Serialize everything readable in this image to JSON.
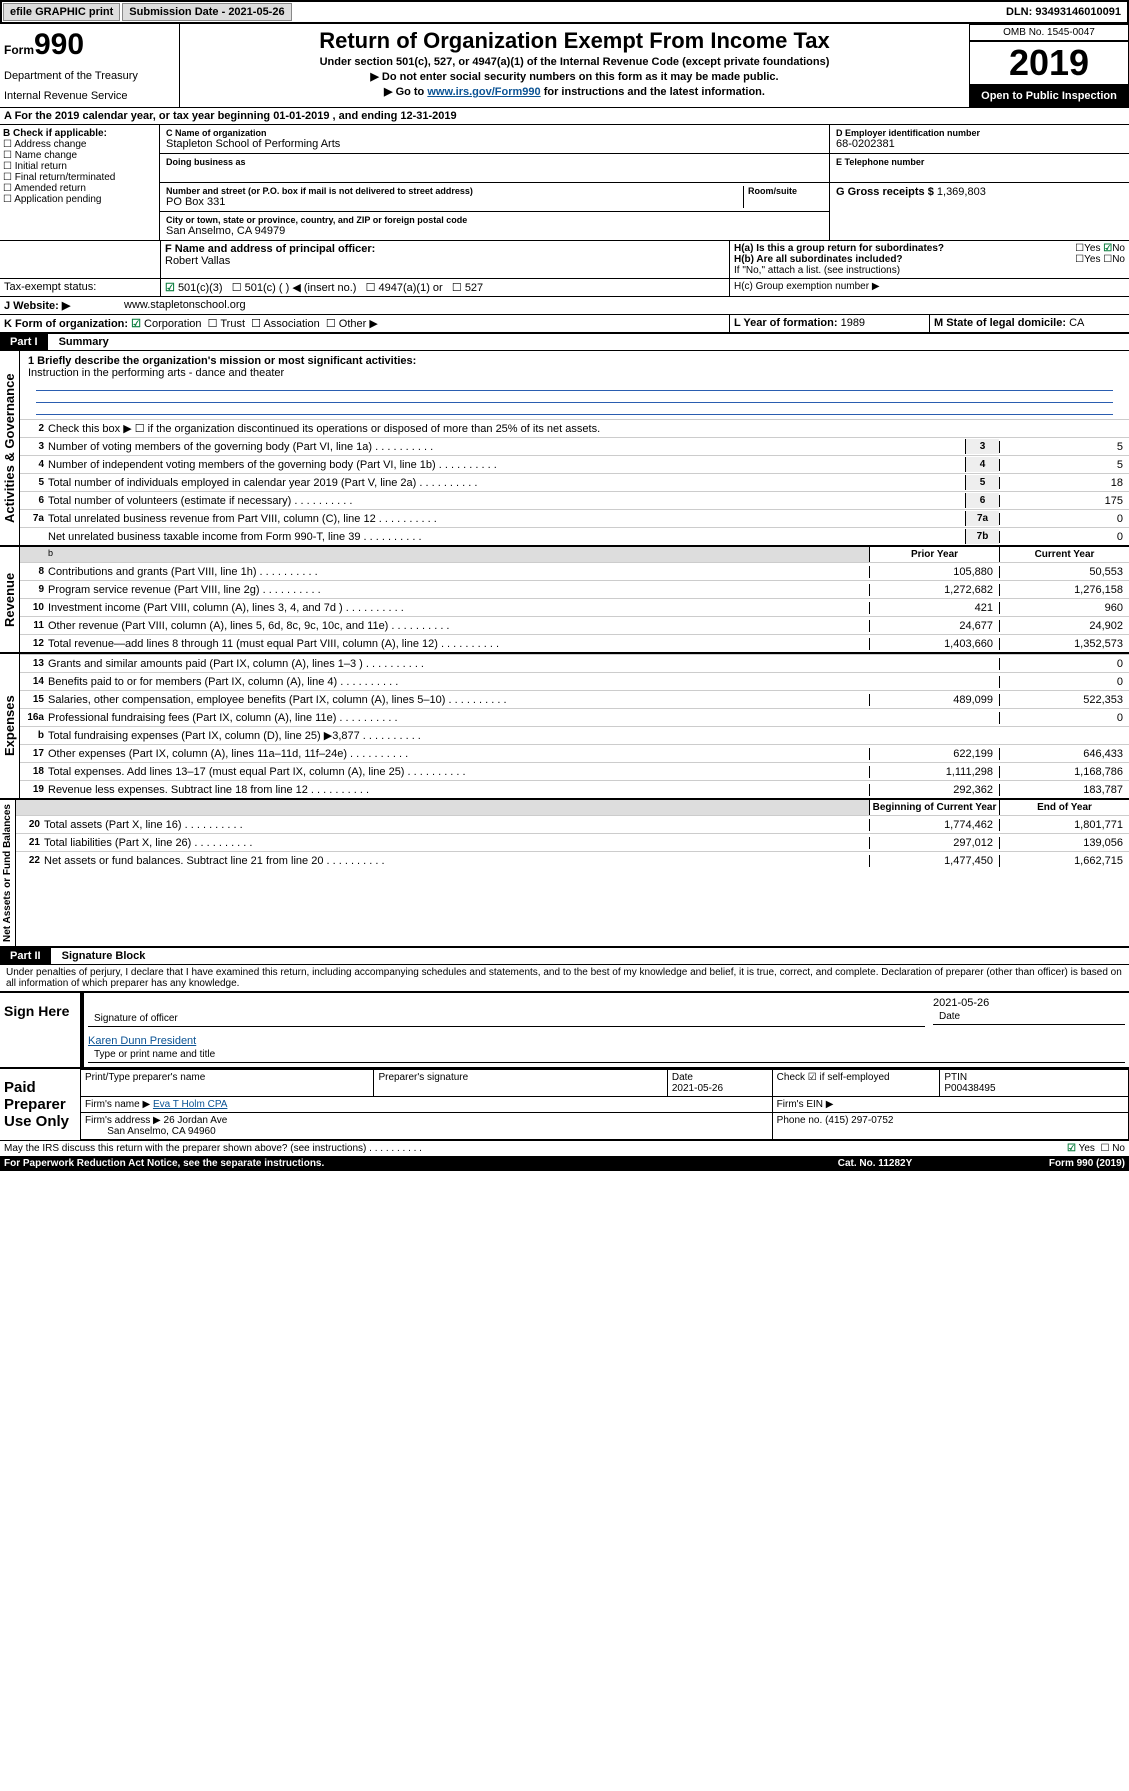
{
  "topbar": {
    "efile": "efile GRAPHIC print",
    "submission_label": "Submission Date - 2021-05-26",
    "dln": "DLN: 93493146010091"
  },
  "header": {
    "form_label": "Form",
    "form_num": "990",
    "dept1": "Department of the Treasury",
    "dept2": "Internal Revenue Service",
    "title": "Return of Organization Exempt From Income Tax",
    "sub1": "Under section 501(c), 527, or 4947(a)(1) of the Internal Revenue Code (except private foundations)",
    "sub2": "▶ Do not enter social security numbers on this form as it may be made public.",
    "sub3_pre": "▶ Go to ",
    "sub3_link": "www.irs.gov/Form990",
    "sub3_post": " for instructions and the latest information.",
    "omb": "OMB No. 1545-0047",
    "year": "2019",
    "open": "Open to Public Inspection"
  },
  "periodA": "A For the 2019 calendar year, or tax year beginning 01-01-2019   , and ending 12-31-2019",
  "boxB": {
    "label": "B Check if applicable:",
    "items": [
      "Address change",
      "Name change",
      "Initial return",
      "Final return/terminated",
      "Amended return",
      "Application pending"
    ]
  },
  "boxC": {
    "name_lbl": "C Name of organization",
    "name": "Stapleton School of Performing Arts",
    "dba_lbl": "Doing business as",
    "addr_lbl": "Number and street (or P.O. box if mail is not delivered to street address)",
    "room_lbl": "Room/suite",
    "addr": "PO Box 331",
    "city_lbl": "City or town, state or province, country, and ZIP or foreign postal code",
    "city": "San Anselmo, CA  94979"
  },
  "boxD": {
    "lbl": "D Employer identification number",
    "val": "68-0202381"
  },
  "boxE": {
    "lbl": "E Telephone number"
  },
  "boxG": {
    "lbl": "G Gross receipts $",
    "val": "1,369,803"
  },
  "boxF": {
    "lbl": "F Name and address of principal officer:",
    "val": "Robert Vallas"
  },
  "boxH": {
    "ha": "H(a)  Is this a group return for subordinates?",
    "hb": "H(b)  Are all subordinates included?",
    "hb_note": "If \"No,\" attach a list. (see instructions)",
    "hc": "H(c)  Group exemption number ▶",
    "yes": "Yes",
    "no": "No"
  },
  "taxExempt": {
    "lbl": "Tax-exempt status:",
    "o1": "501(c)(3)",
    "o2": "501(c) (  ) ◀ (insert no.)",
    "o3": "4947(a)(1) or",
    "o4": "527"
  },
  "website": {
    "lbl": "J  Website: ▶",
    "val": "www.stapletonschool.org"
  },
  "boxK": {
    "lbl": "K Form of organization:",
    "o1": "Corporation",
    "o2": "Trust",
    "o3": "Association",
    "o4": "Other ▶"
  },
  "boxL": {
    "lbl": "L Year of formation:",
    "val": "1989"
  },
  "boxM": {
    "lbl": "M State of legal domicile:",
    "val": "CA"
  },
  "part1": {
    "hdr": "Part I",
    "title": "Summary"
  },
  "summary": {
    "q1_lbl": "1  Briefly describe the organization's mission or most significant activities:",
    "q1_val": "Instruction in the performing arts - dance and theater",
    "q2": "Check this box ▶ ☐  if the organization discontinued its operations or disposed of more than 25% of its net assets.",
    "q3": "Number of voting members of the governing body (Part VI, line 1a)",
    "q4": "Number of independent voting members of the governing body (Part VI, line 1b)",
    "q5": "Total number of individuals employed in calendar year 2019 (Part V, line 2a)",
    "q6": "Total number of volunteers (estimate if necessary)",
    "q7a": "Total unrelated business revenue from Part VIII, column (C), line 12",
    "q7b": "Net unrelated business taxable income from Form 990-T, line 39",
    "v3": "5",
    "v4": "5",
    "v5": "18",
    "v6": "175",
    "v7a": "0",
    "v7b": "0"
  },
  "rev_hdr": {
    "prior": "Prior Year",
    "current": "Current Year"
  },
  "revenue": [
    {
      "n": "8",
      "t": "Contributions and grants (Part VIII, line 1h)",
      "p": "105,880",
      "c": "50,553"
    },
    {
      "n": "9",
      "t": "Program service revenue (Part VIII, line 2g)",
      "p": "1,272,682",
      "c": "1,276,158"
    },
    {
      "n": "10",
      "t": "Investment income (Part VIII, column (A), lines 3, 4, and 7d )",
      "p": "421",
      "c": "960"
    },
    {
      "n": "11",
      "t": "Other revenue (Part VIII, column (A), lines 5, 6d, 8c, 9c, 10c, and 11e)",
      "p": "24,677",
      "c": "24,902"
    },
    {
      "n": "12",
      "t": "Total revenue—add lines 8 through 11 (must equal Part VIII, column (A), line 12)",
      "p": "1,403,660",
      "c": "1,352,573"
    }
  ],
  "expenses": [
    {
      "n": "13",
      "t": "Grants and similar amounts paid (Part IX, column (A), lines 1–3 )",
      "p": "",
      "c": "0"
    },
    {
      "n": "14",
      "t": "Benefits paid to or for members (Part IX, column (A), line 4)",
      "p": "",
      "c": "0"
    },
    {
      "n": "15",
      "t": "Salaries, other compensation, employee benefits (Part IX, column (A), lines 5–10)",
      "p": "489,099",
      "c": "522,353"
    },
    {
      "n": "16a",
      "t": "Professional fundraising fees (Part IX, column (A), line 11e)",
      "p": "",
      "c": "0"
    },
    {
      "n": "b",
      "t": "Total fundraising expenses (Part IX, column (D), line 25) ▶3,877",
      "p": "shade",
      "c": "shade"
    },
    {
      "n": "17",
      "t": "Other expenses (Part IX, column (A), lines 11a–11d, 11f–24e)",
      "p": "622,199",
      "c": "646,433"
    },
    {
      "n": "18",
      "t": "Total expenses. Add lines 13–17 (must equal Part IX, column (A), line 25)",
      "p": "1,111,298",
      "c": "1,168,786"
    },
    {
      "n": "19",
      "t": "Revenue less expenses. Subtract line 18 from line 12",
      "p": "292,362",
      "c": "183,787"
    }
  ],
  "net_hdr": {
    "begin": "Beginning of Current Year",
    "end": "End of Year"
  },
  "netassets": [
    {
      "n": "20",
      "t": "Total assets (Part X, line 16)",
      "p": "1,774,462",
      "c": "1,801,771"
    },
    {
      "n": "21",
      "t": "Total liabilities (Part X, line 26)",
      "p": "297,012",
      "c": "139,056"
    },
    {
      "n": "22",
      "t": "Net assets or fund balances. Subtract line 21 from line 20",
      "p": "1,477,450",
      "c": "1,662,715"
    }
  ],
  "sections": {
    "gov": "Activities & Governance",
    "rev": "Revenue",
    "exp": "Expenses",
    "net": "Net Assets or Fund Balances"
  },
  "part2": {
    "hdr": "Part II",
    "title": "Signature Block"
  },
  "perjury": "Under penalties of perjury, I declare that I have examined this return, including accompanying schedules and statements, and to the best of my knowledge and belief, it is true, correct, and complete. Declaration of preparer (other than officer) is based on all information of which preparer has any knowledge.",
  "sign": {
    "here": "Sign Here",
    "sig_lbl": "Signature of officer",
    "date": "2021-05-26",
    "date_lbl": "Date",
    "name": "Karen Dunn  President",
    "name_lbl": "Type or print name and title"
  },
  "paid": {
    "lbl": "Paid Preparer Use Only",
    "h1": "Print/Type preparer's name",
    "h2": "Preparer's signature",
    "h3": "Date",
    "h4": "Check ☑ if self-employed",
    "h5": "PTIN",
    "date": "2021-05-26",
    "ptin": "P00438495",
    "firm_lbl": "Firm's name   ▶",
    "firm": "Eva T Holm CPA",
    "ein_lbl": "Firm's EIN ▶",
    "addr_lbl": "Firm's address ▶",
    "addr1": "26 Jordan Ave",
    "addr2": "San Anselmo, CA  94960",
    "phone_lbl": "Phone no.",
    "phone": "(415) 297-0752"
  },
  "discuss": "May the IRS discuss this return with the preparer shown above? (see instructions)",
  "footer": {
    "left": "For Paperwork Reduction Act Notice, see the separate instructions.",
    "mid": "Cat. No. 11282Y",
    "right": "Form 990 (2019)"
  }
}
